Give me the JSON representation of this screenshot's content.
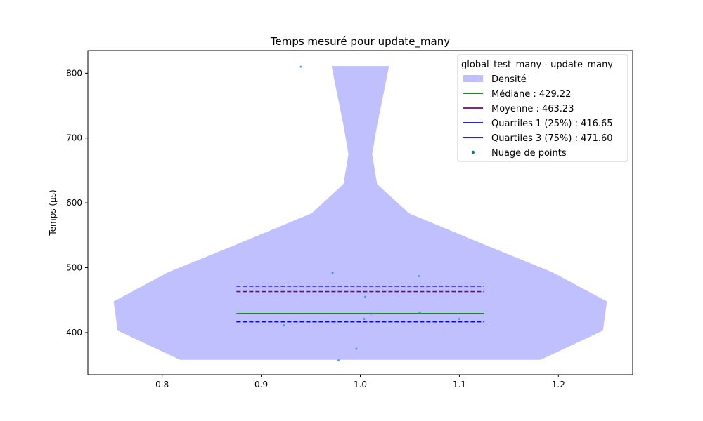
{
  "chart_data": {
    "type": "violin",
    "title": "Temps mesuré pour update_many",
    "xlabel": "",
    "ylabel": "Temps (µs)",
    "xlim": [
      0.725,
      1.275
    ],
    "ylim": [
      335,
      835
    ],
    "xticks": [
      0.8,
      0.9,
      1.0,
      1.1,
      1.2
    ],
    "xtick_labels": [
      "0.8",
      "0.9",
      "1.0",
      "1.1",
      "1.2"
    ],
    "yticks": [
      400,
      500,
      600,
      700,
      800
    ],
    "ytick_labels": [
      "400",
      "500",
      "600",
      "700",
      "800"
    ],
    "grid": false,
    "legend_position": "top-right",
    "legend_title": "global_test_many - update_many",
    "density": {
      "label": "Densité",
      "color": "#c0c0ff",
      "center": 1.0,
      "profile": [
        {
          "y": 358,
          "half_width": 0.182
        },
        {
          "y": 403,
          "half_width": 0.245
        },
        {
          "y": 448,
          "half_width": 0.249
        },
        {
          "y": 493,
          "half_width": 0.194
        },
        {
          "y": 539,
          "half_width": 0.12
        },
        {
          "y": 584,
          "half_width": 0.049
        },
        {
          "y": 629,
          "half_width": 0.017
        },
        {
          "y": 675,
          "half_width": 0.012
        },
        {
          "y": 720,
          "half_width": 0.017
        },
        {
          "y": 765,
          "half_width": 0.023
        },
        {
          "y": 811,
          "half_width": 0.029
        }
      ]
    },
    "lines": [
      {
        "key": "median",
        "label": "Médiane : 429.22",
        "value": 429.22,
        "color": "#008000",
        "dash": false,
        "x": [
          0.875,
          1.125
        ]
      },
      {
        "key": "mean",
        "label": "Moyenne : 463.23",
        "value": 463.23,
        "color": "#800080",
        "dash": true,
        "x": [
          0.875,
          1.125
        ]
      },
      {
        "key": "q1",
        "label": "Quartiles 1 (25%) : 416.65",
        "value": 416.65,
        "color": "#0000ff",
        "dash": true,
        "x": [
          0.875,
          1.125
        ]
      },
      {
        "key": "q3",
        "label": "Quartiles 3 (75%) : 471.60",
        "value": 471.6,
        "color": "#0000ff",
        "dash": true,
        "x": [
          0.875,
          1.125
        ]
      }
    ],
    "legend_line_order": [
      "median",
      "mean",
      "q1",
      "q3"
    ],
    "scatter": {
      "label": "Nuage de points",
      "color": "#1f8fb5",
      "legend_color": "#008080",
      "points": [
        {
          "x": 0.94,
          "y": 810
        },
        {
          "x": 0.972,
          "y": 492
        },
        {
          "x": 1.059,
          "y": 487
        },
        {
          "x": 1.005,
          "y": 455
        },
        {
          "x": 1.06,
          "y": 431
        },
        {
          "x": 1.011,
          "y": 429
        },
        {
          "x": 1.004,
          "y": 421
        },
        {
          "x": 1.1,
          "y": 421
        },
        {
          "x": 0.923,
          "y": 411
        },
        {
          "x": 0.996,
          "y": 375
        },
        {
          "x": 0.978,
          "y": 357
        }
      ]
    }
  }
}
